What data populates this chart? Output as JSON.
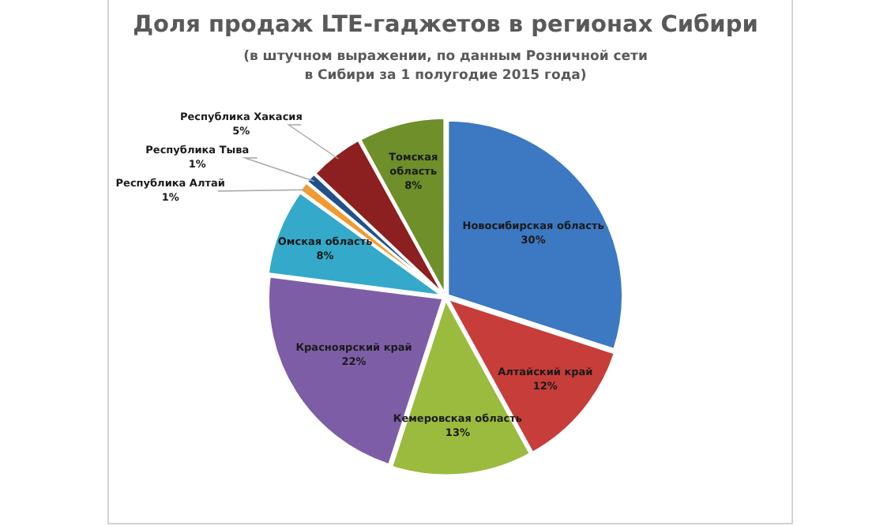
{
  "chart_data": {
    "type": "pie",
    "title": "Доля продаж LTE-гаджетов в регионах Сибири",
    "subtitle": "(в штучном выражении, по данным Розничной сети в Сибири за 1 полугодие 2015 года)",
    "categories": [
      "Новосибирская область",
      "Алтайский край",
      "Кемеровская область",
      "Красноярский край",
      "Омская область",
      "Республика Алтай",
      "Республика Тыва",
      "Республика Хакасия",
      "Томская область"
    ],
    "values": [
      30,
      12,
      13,
      22,
      8,
      1,
      1,
      5,
      8
    ],
    "value_labels": [
      "30%",
      "12%",
      "13%",
      "22%",
      "8%",
      "1%",
      "1%",
      "5%",
      "8%"
    ],
    "colors": [
      "#3d78c2",
      "#c63d3a",
      "#9bbb3e",
      "#7d5ea6",
      "#35a9c9",
      "#f29a30",
      "#23508c",
      "#8c1f1f",
      "#6e8f2a"
    ],
    "legend": false
  }
}
